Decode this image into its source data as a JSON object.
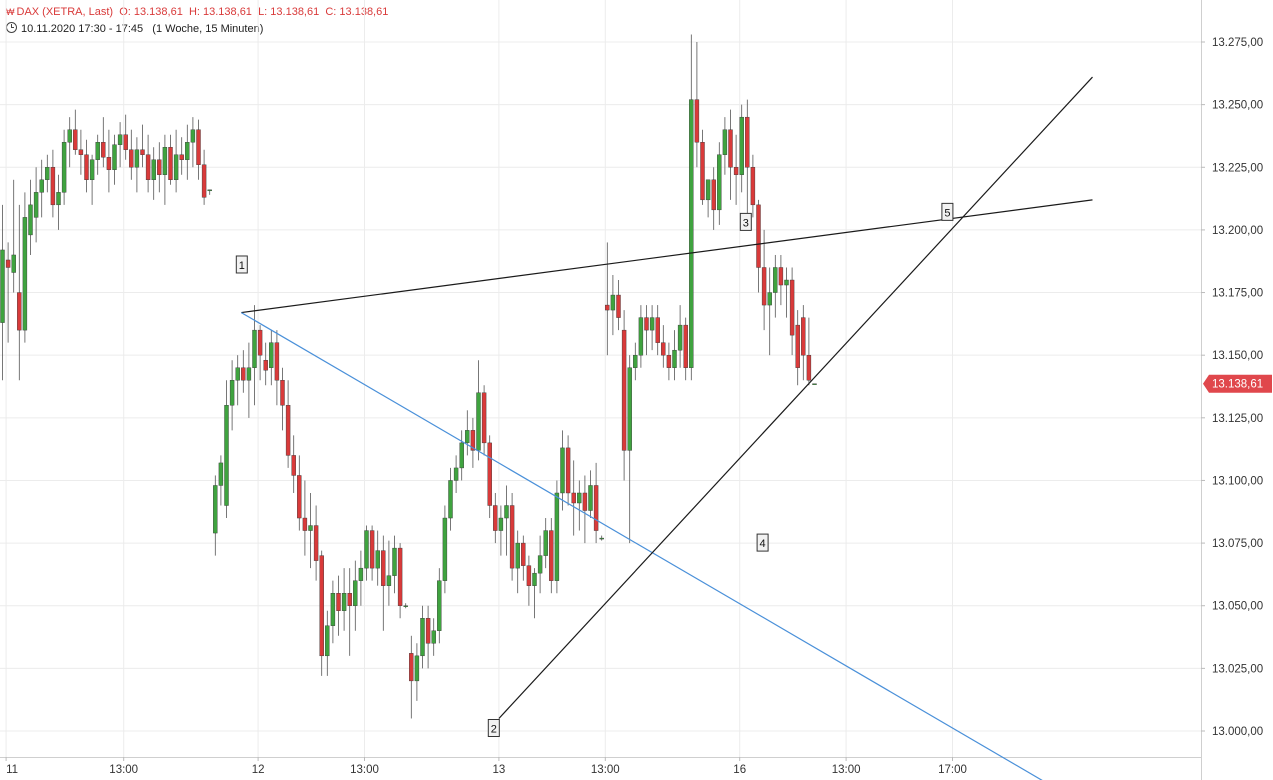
{
  "header": {
    "logo_icon": "chart-logo-icon",
    "instrument": "DAX (XETRA, Last)",
    "open": "O: 13.138,61",
    "high": "H: 13.138,61",
    "low": "L: 13.138,61",
    "close": "C: 13.138,61",
    "timestamp": "10.11.2020 17:30 - 17:45",
    "range": "(1 Woche, 15 Minuten)"
  },
  "colors": {
    "up": "#3fa33f",
    "down": "#d93a3a",
    "grid": "#ececec",
    "trendline_black": "#1a1a1a",
    "trendline_blue": "#4a90d9",
    "price_tag": "#e0474c"
  },
  "chart_data": {
    "type": "candlestick",
    "y_axis": {
      "ticks": [
        "13.000,00",
        "13.025,00",
        "13.050,00",
        "13.075,00",
        "13.100,00",
        "13.125,00",
        "13.150,00",
        "13.175,00",
        "13.200,00",
        "13.225,00",
        "13.250,00",
        "13.275,00"
      ],
      "tick_values": [
        13000,
        13025,
        13050,
        13075,
        13100,
        13125,
        13150,
        13175,
        13200,
        13225,
        13250,
        13275
      ],
      "range": [
        12996,
        13283
      ]
    },
    "x_axis": {
      "labels": [
        "11",
        "13:00",
        "12",
        "13:00",
        "13",
        "13:00",
        "16",
        "13:00",
        "17:00"
      ],
      "label_bars": [
        1,
        22,
        46,
        65,
        89,
        108,
        132,
        151,
        170
      ]
    },
    "last_price": {
      "value": 13138.61,
      "label": "13.138,61"
    },
    "candles": [
      [
        13165,
        13185,
        13135,
        13163
      ],
      [
        13163,
        13210,
        13140,
        13192
      ],
      [
        13188,
        13195,
        13155,
        13185
      ],
      [
        13183,
        13220,
        13175,
        13190
      ],
      [
        13175,
        13210,
        13140,
        13160
      ],
      [
        13160,
        13215,
        13155,
        13205
      ],
      [
        13198,
        13220,
        13190,
        13210
      ],
      [
        13205,
        13225,
        13195,
        13215
      ],
      [
        13215,
        13228,
        13205,
        13220
      ],
      [
        13220,
        13230,
        13215,
        13225
      ],
      [
        13225,
        13232,
        13205,
        13210
      ],
      [
        13210,
        13222,
        13200,
        13215
      ],
      [
        13215,
        13240,
        13210,
        13235
      ],
      [
        13235,
        13245,
        13225,
        13240
      ],
      [
        13240,
        13248,
        13230,
        13232
      ],
      [
        13232,
        13240,
        13222,
        13230
      ],
      [
        13230,
        13236,
        13215,
        13220
      ],
      [
        13220,
        13230,
        13210,
        13228
      ],
      [
        13228,
        13238,
        13222,
        13235
      ],
      [
        13235,
        13245,
        13225,
        13229
      ],
      [
        13229,
        13240,
        13215,
        13224
      ],
      [
        13224,
        13238,
        13218,
        13234
      ],
      [
        13234,
        13243,
        13225,
        13238
      ],
      [
        13238,
        13246,
        13228,
        13232
      ],
      [
        13232,
        13240,
        13220,
        13225
      ],
      [
        13225,
        13237,
        13215,
        13232
      ],
      [
        13232,
        13242,
        13225,
        13230
      ],
      [
        13230,
        13238,
        13215,
        13220
      ],
      [
        13220,
        13233,
        13212,
        13228
      ],
      [
        13228,
        13235,
        13215,
        13222
      ],
      [
        13222,
        13238,
        13210,
        13233
      ],
      [
        13233,
        13238,
        13218,
        13220
      ],
      [
        13220,
        13240,
        13215,
        13230
      ],
      [
        13230,
        13237,
        13222,
        13228
      ],
      [
        13228,
        13242,
        13220,
        13235
      ],
      [
        13235,
        13245,
        13225,
        13240
      ],
      [
        13240,
        13244,
        13220,
        13226
      ],
      [
        13226,
        13232,
        13210,
        13213
      ],
      [
        13216,
        13216,
        13214,
        13216
      ],
      [
        13079,
        13102,
        13070,
        13098
      ],
      [
        13098,
        13110,
        13090,
        13107
      ],
      [
        13090,
        13140,
        13085,
        13130
      ],
      [
        13130,
        13148,
        13120,
        13140
      ],
      [
        13140,
        13150,
        13130,
        13145
      ],
      [
        13145,
        13152,
        13135,
        13140
      ],
      [
        13140,
        13155,
        13125,
        13145
      ],
      [
        13145,
        13170,
        13130,
        13160
      ],
      [
        13160,
        13162,
        13140,
        13150
      ],
      [
        13148,
        13155,
        13138,
        13144
      ],
      [
        13145,
        13160,
        13138,
        13155
      ],
      [
        13155,
        13160,
        13130,
        13140
      ],
      [
        13140,
        13145,
        13120,
        13130
      ],
      [
        13130,
        13140,
        13105,
        13110
      ],
      [
        13110,
        13118,
        13095,
        13102
      ],
      [
        13102,
        13110,
        13080,
        13085
      ],
      [
        13085,
        13100,
        13070,
        13080
      ],
      [
        13080,
        13095,
        13065,
        13082
      ],
      [
        13082,
        13090,
        13060,
        13068
      ],
      [
        13070,
        13072,
        13022,
        13030
      ],
      [
        13030,
        13048,
        13022,
        13042
      ],
      [
        13042,
        13060,
        13035,
        13055
      ],
      [
        13055,
        13062,
        13038,
        13048
      ],
      [
        13048,
        13065,
        13040,
        13055
      ],
      [
        13055,
        13065,
        13030,
        13050
      ],
      [
        13050,
        13068,
        13040,
        13060
      ],
      [
        13060,
        13072,
        13050,
        13065
      ],
      [
        13065,
        13082,
        13060,
        13080
      ],
      [
        13080,
        13082,
        13060,
        13065
      ],
      [
        13065,
        13080,
        13058,
        13072
      ],
      [
        13072,
        13078,
        13040,
        13058
      ],
      [
        13058,
        13076,
        13050,
        13062
      ],
      [
        13062,
        13078,
        13055,
        13073
      ],
      [
        13073,
        13075,
        13045,
        13050
      ],
      [
        13050,
        13051,
        13049,
        13050
      ],
      [
        13031,
        13038,
        13005,
        13020
      ],
      [
        13020,
        13035,
        13012,
        13030
      ],
      [
        13030,
        13050,
        13025,
        13045
      ],
      [
        13045,
        13050,
        13025,
        13035
      ],
      [
        13035,
        13045,
        13030,
        13040
      ],
      [
        13040,
        13065,
        13035,
        13060
      ],
      [
        13060,
        13090,
        13055,
        13085
      ],
      [
        13085,
        13105,
        13080,
        13100
      ],
      [
        13100,
        13110,
        13095,
        13105
      ],
      [
        13105,
        13120,
        13100,
        13115
      ],
      [
        13115,
        13128,
        13110,
        13120
      ],
      [
        13120,
        13125,
        13105,
        13112
      ],
      [
        13112,
        13148,
        13108,
        13135
      ],
      [
        13135,
        13138,
        13110,
        13115
      ],
      [
        13115,
        13118,
        13085,
        13090
      ],
      [
        13090,
        13095,
        13075,
        13080
      ],
      [
        13080,
        13090,
        13070,
        13085
      ],
      [
        13085,
        13098,
        13070,
        13090
      ],
      [
        13090,
        13095,
        13060,
        13065
      ],
      [
        13065,
        13080,
        13055,
        13075
      ],
      [
        13075,
        13078,
        13060,
        13066
      ],
      [
        13066,
        13070,
        13050,
        13058
      ],
      [
        13058,
        13065,
        13045,
        13063
      ],
      [
        13063,
        13078,
        13055,
        13070
      ],
      [
        13070,
        13085,
        13065,
        13080
      ],
      [
        13080,
        13085,
        13055,
        13060
      ],
      [
        13060,
        13100,
        13055,
        13095
      ],
      [
        13095,
        13120,
        13088,
        13113
      ],
      [
        13113,
        13118,
        13090,
        13095
      ],
      [
        13095,
        13108,
        13078,
        13091
      ],
      [
        13091,
        13100,
        13080,
        13095
      ],
      [
        13095,
        13102,
        13075,
        13088
      ],
      [
        13088,
        13104,
        13085,
        13098
      ],
      [
        13098,
        13107,
        13075,
        13080
      ],
      [
        13077,
        13078,
        13076,
        13077
      ],
      [
        13170,
        13195,
        13150,
        13168
      ],
      [
        13168,
        13182,
        13158,
        13174
      ],
      [
        13174,
        13180,
        13160,
        13165
      ],
      [
        13160,
        13168,
        13100,
        13112
      ],
      [
        13112,
        13150,
        13075,
        13145
      ],
      [
        13145,
        13155,
        13140,
        13150
      ],
      [
        13150,
        13170,
        13145,
        13165
      ],
      [
        13165,
        13170,
        13150,
        13160
      ],
      [
        13160,
        13170,
        13152,
        13165
      ],
      [
        13165,
        13170,
        13150,
        13155
      ],
      [
        13155,
        13162,
        13145,
        13150
      ],
      [
        13150,
        13155,
        13140,
        13145
      ],
      [
        13145,
        13160,
        13140,
        13152
      ],
      [
        13152,
        13170,
        13145,
        13162
      ],
      [
        13162,
        13165,
        13140,
        13145
      ],
      [
        13145,
        13278,
        13140,
        13252
      ],
      [
        13252,
        13275,
        13225,
        13235
      ],
      [
        13235,
        13240,
        13210,
        13212
      ],
      [
        13212,
        13220,
        13205,
        13220
      ],
      [
        13220,
        13225,
        13200,
        13208
      ],
      [
        13208,
        13235,
        13202,
        13230
      ],
      [
        13230,
        13245,
        13222,
        13240
      ],
      [
        13240,
        13248,
        13212,
        13225
      ],
      [
        13225,
        13238,
        13210,
        13222
      ],
      [
        13222,
        13250,
        13215,
        13245
      ],
      [
        13245,
        13252,
        13200,
        13225
      ],
      [
        13225,
        13230,
        13205,
        13210
      ],
      [
        13210,
        13212,
        13175,
        13185
      ],
      [
        13185,
        13200,
        13160,
        13170
      ],
      [
        13170,
        13185,
        13150,
        13175
      ],
      [
        13175,
        13190,
        13165,
        13185
      ],
      [
        13185,
        13190,
        13170,
        13178
      ],
      [
        13178,
        13185,
        13165,
        13180
      ],
      [
        13180,
        13185,
        13150,
        13158
      ],
      [
        13162,
        13168,
        13138,
        13145
      ],
      [
        13165,
        13170,
        13140,
        13150
      ],
      [
        13150,
        13165,
        13138,
        13140
      ],
      [
        13138.61,
        13138.61,
        13138.61,
        13138.61
      ]
    ],
    "candle_bars": {
      "day1_start": -1,
      "day1_end": 37,
      "day2_start": 38,
      "day2_end": 73,
      "day3_start": 74,
      "day3_end": 109,
      "day4_start": 110,
      "day4_end": 145
    },
    "annotations": [
      {
        "label": "1",
        "bar": 43,
        "value": 13186
      },
      {
        "label": "2",
        "bar": 88,
        "value": 13001
      },
      {
        "label": "3",
        "bar": 133,
        "value": 13203
      },
      {
        "label": "4",
        "bar": 136,
        "value": 13075
      },
      {
        "label": "5",
        "bar": 169,
        "value": 13207
      }
    ],
    "trendlines": [
      {
        "name": "",
        "color": "black",
        "from": {
          "bar": 43,
          "value": 13167
        },
        "to": {
          "bar": 195,
          "value": 13212
        }
      },
      {
        "name": "",
        "color": "blue",
        "from": {
          "bar": 43,
          "value": 13167
        },
        "to": {
          "bar": 187,
          "value": 12979
        }
      },
      {
        "name": "",
        "color": "black",
        "from": {
          "bar": 89,
          "value": 13005
        },
        "to": {
          "bar": 195,
          "value": 13261
        }
      }
    ]
  }
}
